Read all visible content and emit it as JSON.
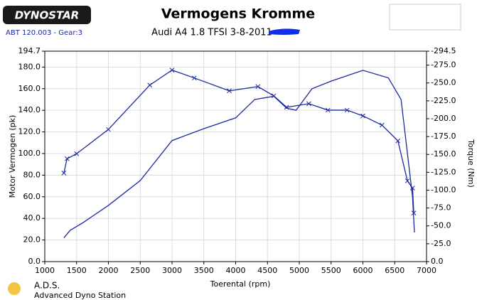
{
  "header": {
    "logo": "DYNOSTAR",
    "run": "ABT 120.003 - Gear:3"
  },
  "footer": {
    "brand": "A.D.S.",
    "tagline": "Advanced Dyno Station"
  },
  "chart_data": {
    "type": "line",
    "title": "Vermogens Kromme",
    "subtitle": "Audi A4 1.8 TFSI 3-8-2011",
    "x_label": "Toerental (rpm)",
    "y_label": "Motor Vermogen (pk)",
    "y2_label": "Torque (Nm)",
    "xlim": [
      1000,
      7000
    ],
    "xticks": [
      1000,
      1500,
      2000,
      2500,
      3000,
      3500,
      4000,
      4500,
      5000,
      5500,
      6000,
      6500,
      7000
    ],
    "ylim": [
      0,
      194.7
    ],
    "yticks": [
      {
        "value": 0,
        "label": "0.0"
      },
      {
        "value": 20,
        "label": "20.0"
      },
      {
        "value": 40,
        "label": "40.0"
      },
      {
        "value": 60,
        "label": "60.0"
      },
      {
        "value": 80,
        "label": "80.0"
      },
      {
        "value": 100,
        "label": "100.0"
      },
      {
        "value": 120,
        "label": "120.0"
      },
      {
        "value": 140,
        "label": "140.0"
      },
      {
        "value": 160,
        "label": "160.0"
      },
      {
        "value": 180,
        "label": "180.0"
      },
      194.7
    ],
    "y2lim": [
      0,
      -294.5
    ],
    "y2ticks": [
      {
        "value": 0,
        "label": "0.0"
      },
      {
        "value": -25,
        "label": "-25.0"
      },
      {
        "value": -50,
        "label": "-50.0"
      },
      {
        "value": -75,
        "label": "-75.0"
      },
      {
        "value": -100,
        "label": "-100.0"
      },
      {
        "value": -125,
        "label": "-125.0"
      },
      {
        "value": -150,
        "label": "-150.0"
      },
      {
        "value": -175,
        "label": "-175.0"
      },
      {
        "value": -200,
        "label": "-200.0"
      },
      {
        "value": -225,
        "label": "-225.0"
      },
      {
        "value": -250,
        "label": "-250.0"
      },
      {
        "value": -275,
        "label": "-275.0"
      },
      -294.5
    ],
    "grid": true,
    "series": [
      {
        "color": "#1c2a9c",
        "marker": "x",
        "axis": "y2",
        "x": [
          1300,
          1350,
          1500,
          2000,
          2650,
          3000,
          3350,
          3900,
          4350,
          4600,
          4800,
          5150,
          5450,
          5750,
          6000,
          6300,
          6550,
          6700,
          6780,
          6800
        ],
        "values": [
          -124,
          -144,
          -151,
          -185,
          -247,
          -268,
          -257,
          -239,
          -245,
          -232,
          -216,
          -221,
          -212,
          -212,
          -204,
          -191,
          -169,
          -113,
          -103,
          -68
        ]
      },
      {
        "color": "#1c2a9c",
        "axis": "y",
        "x": [
          1300,
          1400,
          1600,
          2000,
          2500,
          3000,
          3500,
          4000,
          4300,
          4600,
          4800,
          4950,
          5200,
          5500,
          6000,
          6400,
          6600,
          6700,
          6780,
          6810
        ],
        "values": [
          22,
          29,
          36,
          52,
          75,
          112,
          123,
          133,
          150,
          153,
          142,
          140,
          160,
          167,
          177,
          170,
          150,
          100,
          60,
          27
        ]
      }
    ]
  }
}
